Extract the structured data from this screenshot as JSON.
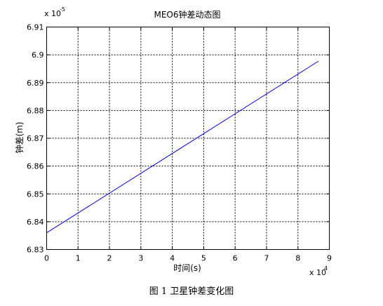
{
  "chart_data": {
    "type": "line",
    "title": "MEO6钟差动态图",
    "xlabel": "时间(s)",
    "ylabel": "钟差(m)",
    "x_multiplier_label": "x 10",
    "x_multiplier_exp": "4",
    "y_multiplier_label": "x 10",
    "y_multiplier_exp": "-5",
    "xlim": [
      0,
      9
    ],
    "ylim": [
      6.83,
      6.91
    ],
    "xticks": [
      0,
      1,
      2,
      3,
      4,
      5,
      6,
      7,
      8,
      9
    ],
    "yticks": [
      6.83,
      6.84,
      6.85,
      6.86,
      6.87,
      6.88,
      6.89,
      6.9,
      6.91
    ],
    "ytick_labels": [
      "6.83",
      "6.84",
      "6.85",
      "6.86",
      "6.87",
      "6.88",
      "6.89",
      "6.9",
      "6.91"
    ],
    "grid": true,
    "series": [
      {
        "color": "#0000ff",
        "x": [
          0,
          8.65
        ],
        "y": [
          6.836,
          6.8977
        ]
      }
    ]
  },
  "caption": "图 1  卫星钟差变化图"
}
